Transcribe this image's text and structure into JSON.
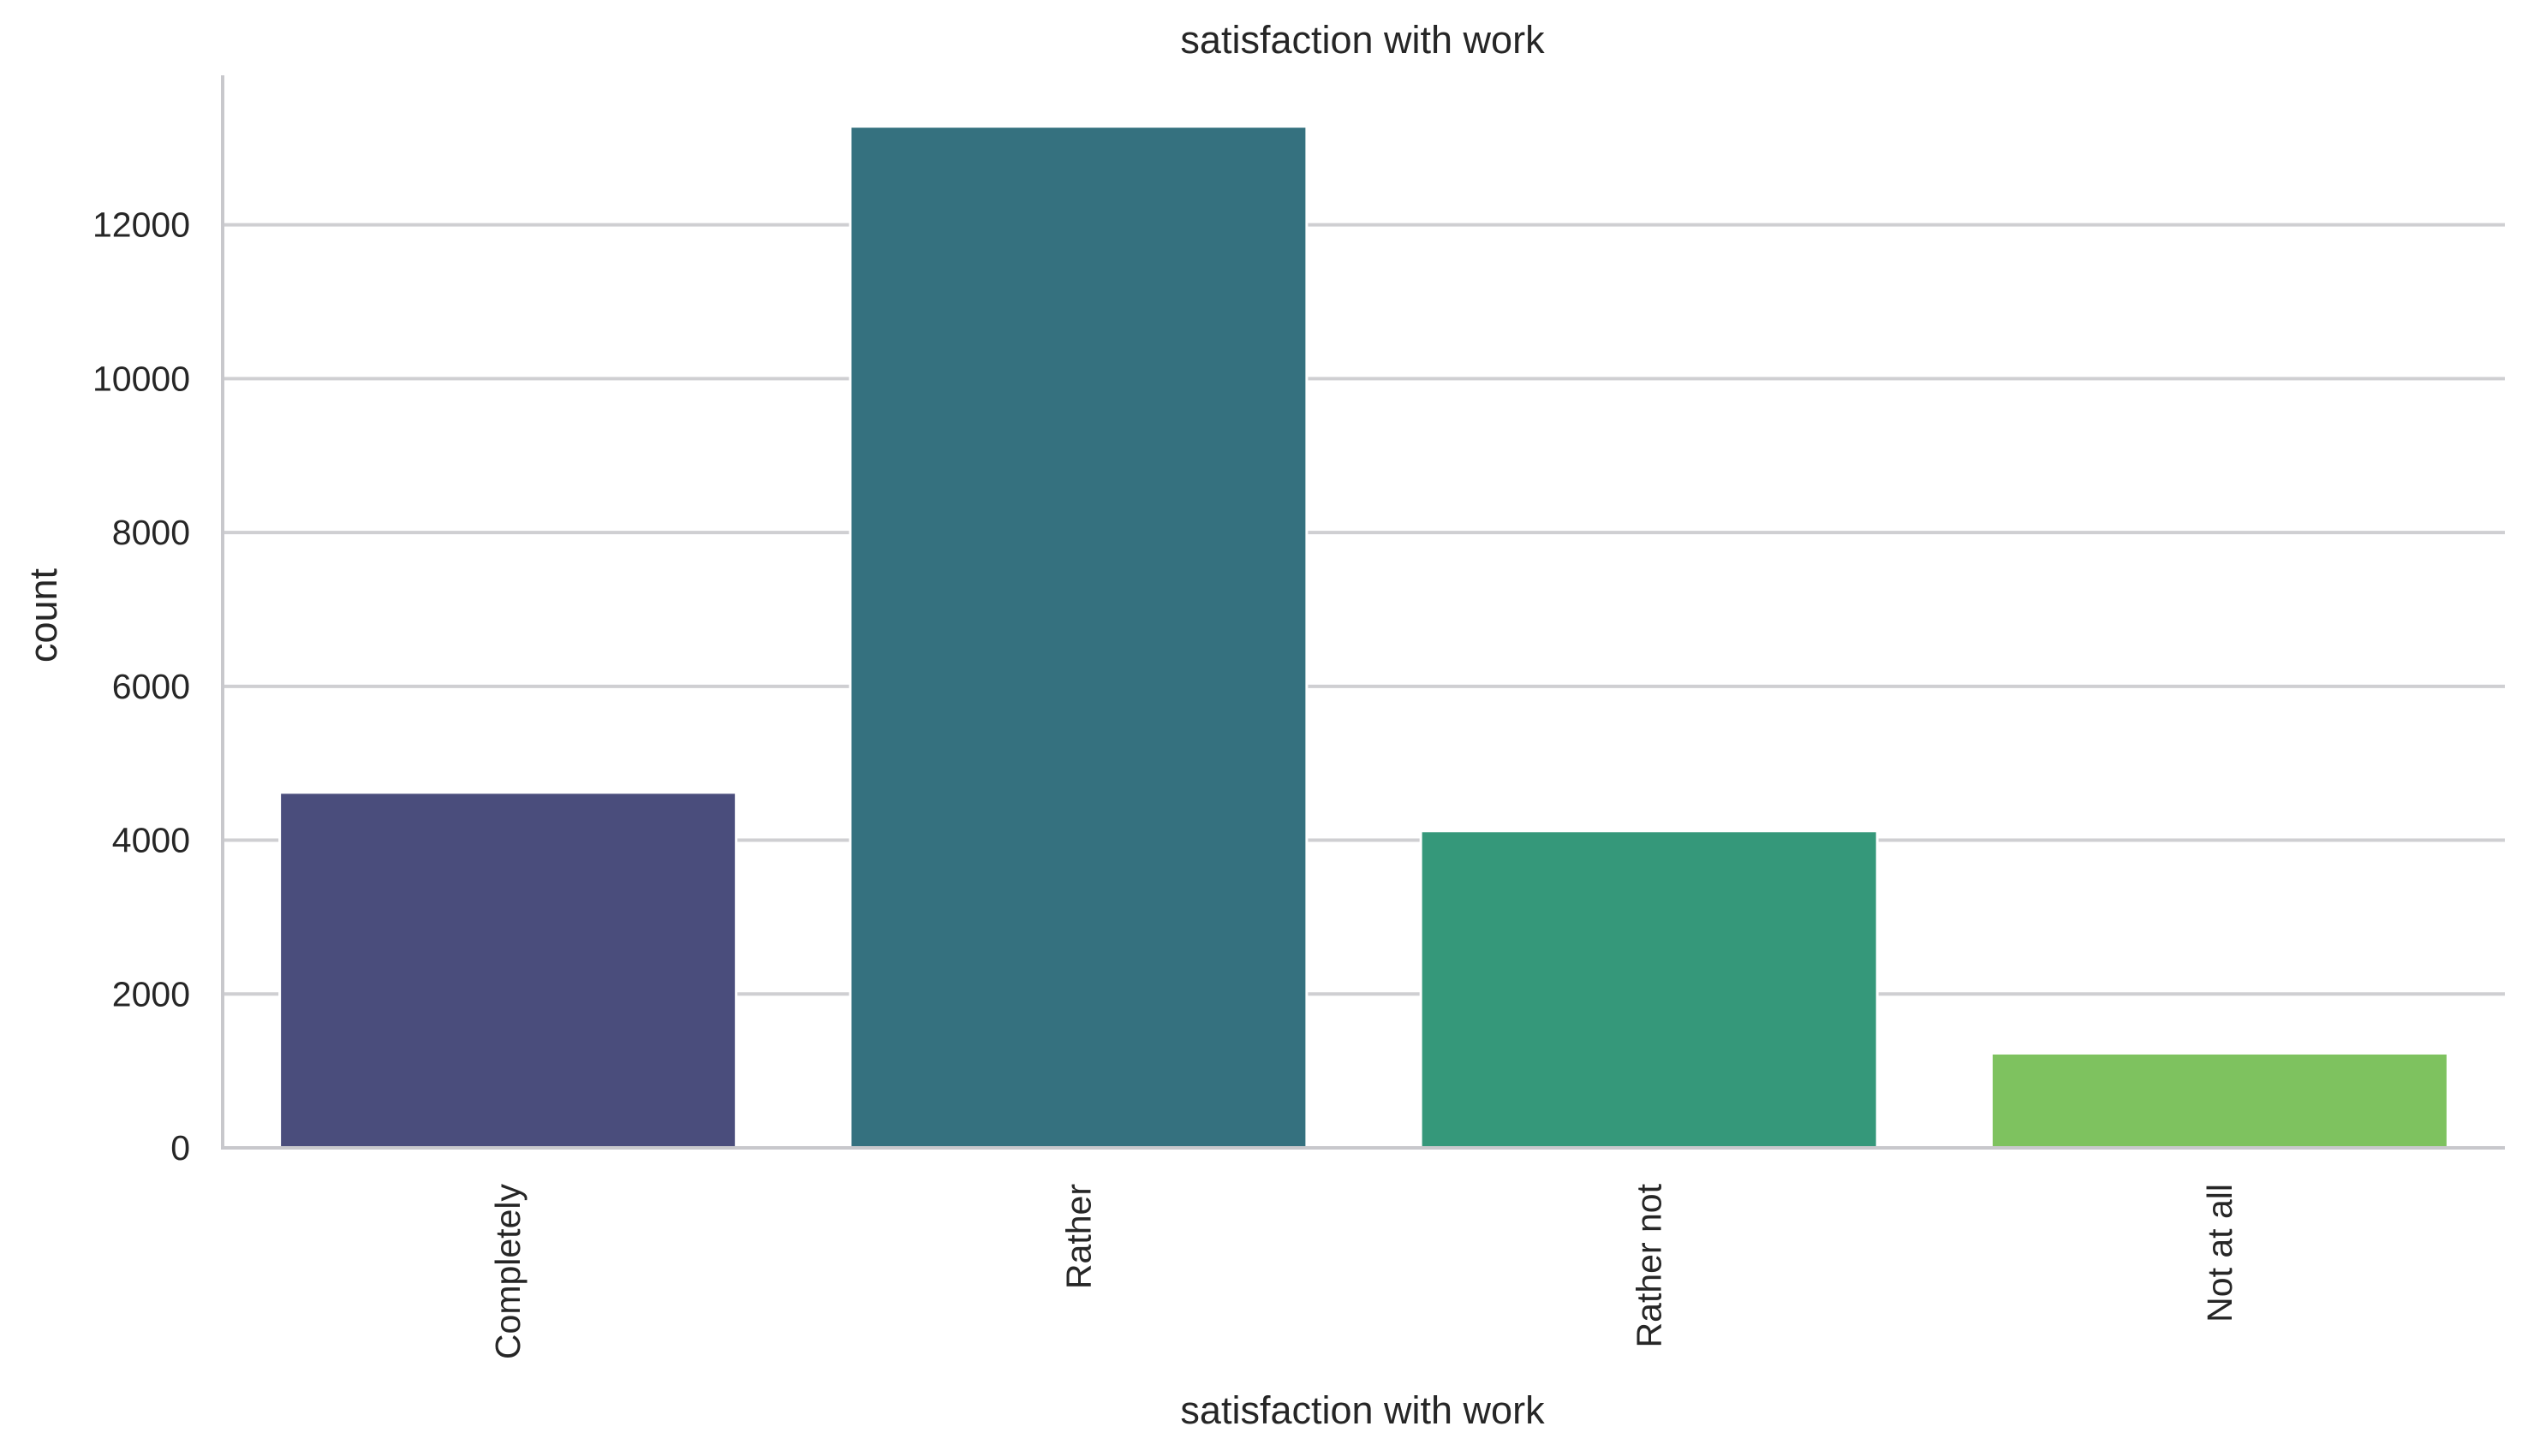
{
  "chart_data": {
    "type": "bar",
    "title": "satisfaction with work",
    "xlabel": "satisfaction with work",
    "ylabel": "count",
    "categories": [
      "Completely",
      "Rather",
      "Rather not",
      "Not at all"
    ],
    "values": [
      4620,
      13280,
      4120,
      1230
    ],
    "colors": [
      "#4a4d7c",
      "#35717f",
      "#35987a",
      "#7ec25f"
    ],
    "yticks": [
      0,
      2000,
      4000,
      6000,
      8000,
      10000,
      12000
    ],
    "ylim": [
      0,
      13944
    ],
    "grid": true,
    "grid_color": "#cfcfd2",
    "spine_color": "#c8c8cc"
  }
}
